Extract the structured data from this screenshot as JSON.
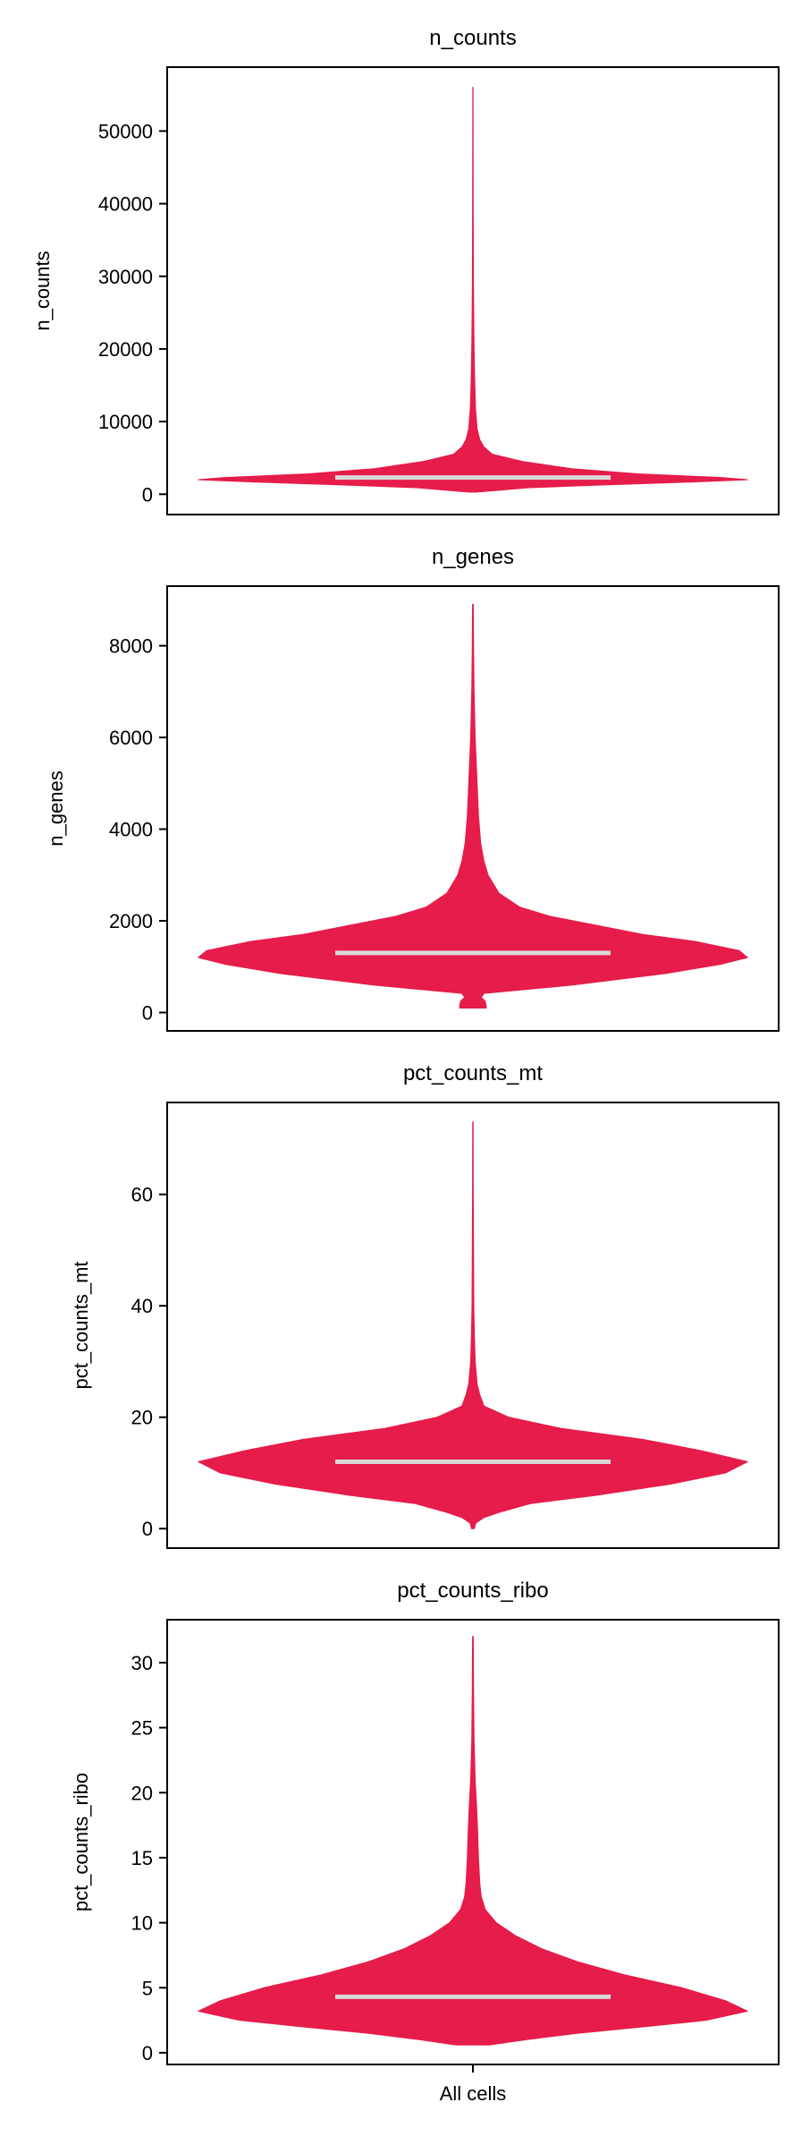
{
  "colors": {
    "violin": "#e61c4b",
    "median": "#d9d9d9",
    "axis": "#000000"
  },
  "chart_data": [
    {
      "type": "violin",
      "title": "n_counts",
      "ylabel": "n_counts",
      "xlabel": "",
      "categories": [
        ""
      ],
      "ylim": [
        -2800,
        58800
      ],
      "yticks": [
        0,
        10000,
        20000,
        30000,
        40000,
        50000
      ],
      "median": 2300,
      "profile": [
        [
          300,
          0.01
        ],
        [
          500,
          0.08
        ],
        [
          900,
          0.2
        ],
        [
          1300,
          0.48
        ],
        [
          1700,
          0.8
        ],
        [
          2000,
          1.0
        ],
        [
          2300,
          0.9
        ],
        [
          2800,
          0.6
        ],
        [
          3500,
          0.36
        ],
        [
          4500,
          0.18
        ],
        [
          5500,
          0.07
        ],
        [
          6500,
          0.04
        ],
        [
          7500,
          0.025
        ],
        [
          9000,
          0.015
        ],
        [
          12000,
          0.009
        ],
        [
          16000,
          0.006
        ],
        [
          20000,
          0.004
        ],
        [
          25000,
          0.0025
        ],
        [
          30000,
          0.0015
        ],
        [
          40000,
          0.0008
        ],
        [
          50000,
          0.0004
        ],
        [
          56000,
          0.0002
        ]
      ]
    },
    {
      "type": "violin",
      "title": "n_genes",
      "ylabel": "n_genes",
      "xlabel": "",
      "categories": [
        ""
      ],
      "ylim": [
        -400,
        9300
      ],
      "yticks": [
        0,
        2000,
        4000,
        6000,
        8000
      ],
      "median": 1300,
      "profile": [
        [
          100,
          0.048
        ],
        [
          150,
          0.048
        ],
        [
          250,
          0.044
        ],
        [
          330,
          0.03
        ],
        [
          420,
          0.04
        ],
        [
          600,
          0.36
        ],
        [
          850,
          0.7
        ],
        [
          1050,
          0.9
        ],
        [
          1200,
          1.0
        ],
        [
          1350,
          0.97
        ],
        [
          1550,
          0.81
        ],
        [
          1700,
          0.62
        ],
        [
          1900,
          0.45
        ],
        [
          2100,
          0.28
        ],
        [
          2300,
          0.17
        ],
        [
          2600,
          0.095
        ],
        [
          3000,
          0.055
        ],
        [
          3300,
          0.04
        ],
        [
          3700,
          0.028
        ],
        [
          4300,
          0.02
        ],
        [
          5000,
          0.015
        ],
        [
          6000,
          0.008
        ],
        [
          7000,
          0.004
        ],
        [
          8000,
          0.002
        ],
        [
          8900,
          0.001
        ]
      ]
    },
    {
      "type": "violin",
      "title": "pct_counts_mt",
      "ylabel": "pct_counts_mt",
      "xlabel": "",
      "categories": [
        ""
      ],
      "ylim": [
        -3.5,
        76.5
      ],
      "yticks": [
        0,
        20,
        40,
        60
      ],
      "median": 12,
      "profile": [
        [
          0,
          0.005
        ],
        [
          1,
          0.01
        ],
        [
          2,
          0.04
        ],
        [
          3,
          0.1
        ],
        [
          4.5,
          0.21
        ],
        [
          6,
          0.45
        ],
        [
          8,
          0.72
        ],
        [
          10,
          0.92
        ],
        [
          12,
          1.0
        ],
        [
          14,
          0.83
        ],
        [
          16,
          0.62
        ],
        [
          18,
          0.32
        ],
        [
          20,
          0.13
        ],
        [
          22,
          0.04
        ],
        [
          24,
          0.025
        ],
        [
          26,
          0.015
        ],
        [
          30,
          0.008
        ],
        [
          35,
          0.005
        ],
        [
          40,
          0.003
        ],
        [
          50,
          0.002
        ],
        [
          60,
          0.001
        ],
        [
          73,
          0.0005
        ]
      ]
    },
    {
      "type": "violin",
      "title": "pct_counts_ribo",
      "ylabel": "pct_counts_ribo",
      "xlabel": "All cells",
      "categories": [
        "All cells"
      ],
      "ylim": [
        -0.9,
        33.3
      ],
      "yticks": [
        0,
        5,
        10,
        15,
        20,
        25,
        30
      ],
      "median": 4.3,
      "profile": [
        [
          0.6,
          0.06
        ],
        [
          1.0,
          0.19
        ],
        [
          1.5,
          0.38
        ],
        [
          2.0,
          0.62
        ],
        [
          2.5,
          0.85
        ],
        [
          3.2,
          1.0
        ],
        [
          4.0,
          0.92
        ],
        [
          5.0,
          0.76
        ],
        [
          6.0,
          0.55
        ],
        [
          7.0,
          0.38
        ],
        [
          8.0,
          0.25
        ],
        [
          9.0,
          0.155
        ],
        [
          10.0,
          0.085
        ],
        [
          11.0,
          0.045
        ],
        [
          12.0,
          0.03
        ],
        [
          13.0,
          0.025
        ],
        [
          15.0,
          0.02
        ],
        [
          17.0,
          0.017
        ],
        [
          19.0,
          0.013
        ],
        [
          21.0,
          0.008
        ],
        [
          24.0,
          0.004
        ],
        [
          28.0,
          0.002
        ],
        [
          32.0,
          0.001
        ]
      ]
    }
  ]
}
